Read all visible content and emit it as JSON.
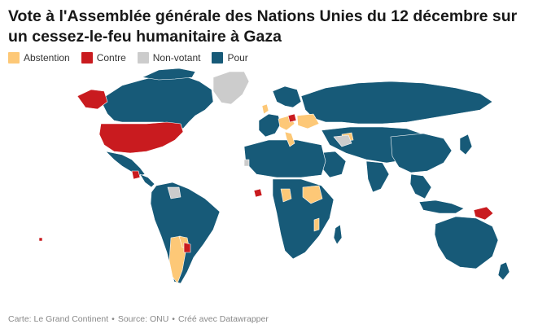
{
  "title": "Vote à l'Assemblée générale des Nations Unies du 12 décembre sur un cessez-le-feu humanitaire à Gaza",
  "legend": [
    {
      "label": "Abstention",
      "color": "#fdc877"
    },
    {
      "label": "Contre",
      "color": "#c91b1f"
    },
    {
      "label": "Non-votant",
      "color": "#cccccc"
    },
    {
      "label": "Pour",
      "color": "#175a78"
    }
  ],
  "footer": {
    "map": "Carte: Le Grand Continent",
    "source": "Source: ONU",
    "tool": "Créé avec Datawrapper",
    "separator": "•"
  }
}
